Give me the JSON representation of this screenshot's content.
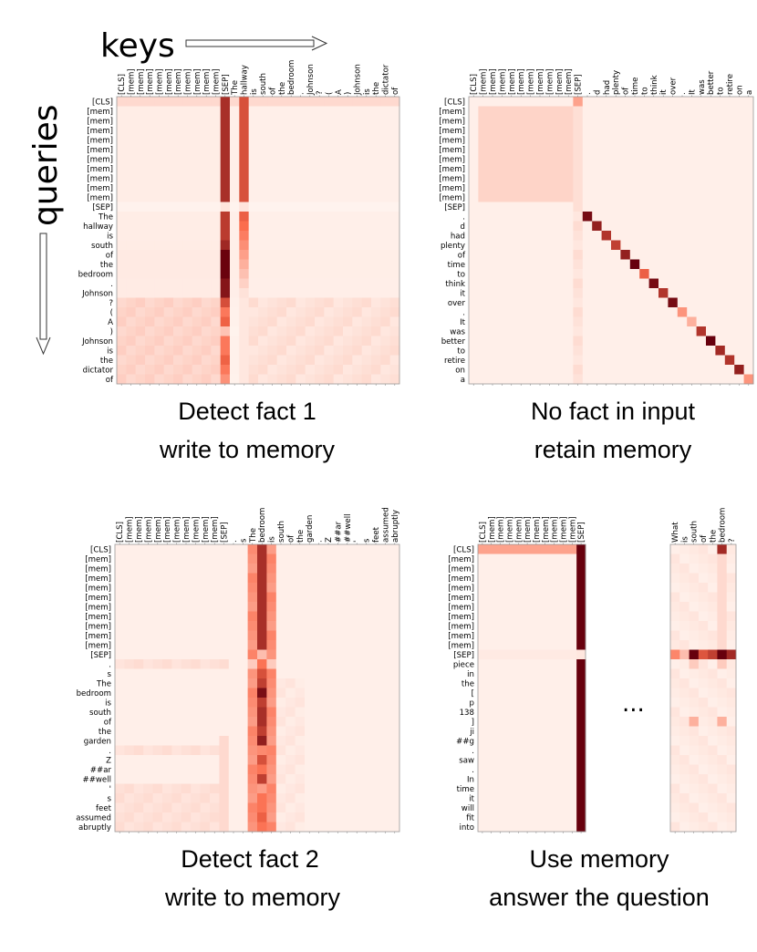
{
  "axis_labels": {
    "keys": "keys",
    "queries": "queries"
  },
  "ellipsis": "...",
  "colors": {
    "low": "#fff5f0",
    "mid": "#fb6a4a",
    "high": "#67000d"
  },
  "chart_data": [
    {
      "type": "heatmap",
      "caption": [
        "Detect fact 1",
        "write to memory"
      ],
      "x_labels": [
        "[CLS]",
        "[mem]",
        "[mem]",
        "[mem]",
        "[mem]",
        "[mem]",
        "[mem]",
        "[mem]",
        "[mem]",
        "[mem]",
        "[mem]",
        "[SEP]",
        "The",
        "hallway",
        "is",
        "south",
        "of",
        "the",
        "bedroom",
        ".",
        "Johnson",
        "?",
        "(",
        "A",
        ")",
        "Johnson",
        "is",
        "the",
        "dictator",
        "of"
      ],
      "y_labels": [
        "[CLS]",
        "[mem]",
        "[mem]",
        "[mem]",
        "[mem]",
        "[mem]",
        "[mem]",
        "[mem]",
        "[mem]",
        "[mem]",
        "[mem]",
        "[SEP]",
        "The",
        "hallway",
        "is",
        "south",
        "of",
        "the",
        "bedroom",
        ".",
        "Johnson",
        "?",
        "(",
        "A",
        ")",
        "Johnson",
        "is",
        "the",
        "dictator",
        "of"
      ],
      "column_weights": [
        0.03,
        0.03,
        0.03,
        0.03,
        0.03,
        0.03,
        0.03,
        0.03,
        0.03,
        0.03,
        0.03,
        0.75,
        0.02,
        0.6,
        0.02,
        0.02,
        0.02,
        0.02,
        0.02,
        0.02,
        0.02,
        0.02,
        0.02,
        0.02,
        0.02,
        0.02,
        0.02,
        0.02,
        0.02,
        0.02
      ],
      "row_weights": [
        0.6,
        1,
        1,
        1,
        1,
        1,
        1,
        1,
        1,
        1,
        1,
        0.3,
        1,
        1,
        1,
        1.1,
        1.3,
        1.3,
        1.3,
        1.2,
        1.2,
        0.9,
        0.7,
        0.8,
        0.4,
        0.7,
        0.7,
        0.8,
        0.7,
        0.6
      ]
    },
    {
      "type": "heatmap",
      "caption": [
        "No fact in input",
        "retain memory"
      ],
      "x_labels": [
        "[CLS]",
        "[mem]",
        "[mem]",
        "[mem]",
        "[mem]",
        "[mem]",
        "[mem]",
        "[mem]",
        "[mem]",
        "[mem]",
        "[mem]",
        "[SEP]",
        ".",
        "d",
        "had",
        "plenty",
        "of",
        "time",
        "to",
        "think",
        "it",
        "over",
        ".",
        "It",
        "was",
        "better",
        "to",
        "retire",
        "on",
        "a"
      ],
      "y_labels": [
        "[CLS]",
        "[mem]",
        "[mem]",
        "[mem]",
        "[mem]",
        "[mem]",
        "[mem]",
        "[mem]",
        "[mem]",
        "[mem]",
        "[mem]",
        "[SEP]",
        ".",
        "d",
        "had",
        "plenty",
        "of",
        "time",
        "to",
        "think",
        "it",
        "over",
        ".",
        "It",
        "was",
        "better",
        "to",
        "retire",
        "on",
        "a"
      ],
      "memory_block": 0.12,
      "diagonal": [
        0.95,
        0.85,
        0.75,
        0.7,
        0.85,
        1.0,
        0.55,
        0.95,
        0.75,
        0.95,
        0.35,
        0.25,
        0.75,
        1.0,
        0.8,
        0.75,
        0.85,
        0.35
      ]
    },
    {
      "type": "heatmap",
      "caption": [
        "Detect fact 2",
        "write to memory"
      ],
      "x_labels": [
        "[CLS]",
        "[mem]",
        "[mem]",
        "[mem]",
        "[mem]",
        "[mem]",
        "[mem]",
        "[mem]",
        "[mem]",
        "[mem]",
        "[mem]",
        "[SEP]",
        ".",
        "s",
        "The",
        "bedroom",
        "is",
        "south",
        "of",
        "the",
        "garden",
        ".",
        "Z",
        "##ar",
        "##well",
        "'",
        "s",
        "feet",
        "assumed",
        "abruptly"
      ],
      "y_labels": [
        "[CLS]",
        "[mem]",
        "[mem]",
        "[mem]",
        "[mem]",
        "[mem]",
        "[mem]",
        "[mem]",
        "[mem]",
        "[mem]",
        "[mem]",
        "[SEP]",
        ".",
        "s",
        "The",
        "bedroom",
        "is",
        "south",
        "of",
        "the",
        "garden",
        ".",
        "Z",
        "##ar",
        "##well",
        "'",
        "s",
        "feet",
        "assumed",
        "abruptly"
      ],
      "column_weights": [
        0.03,
        0.03,
        0.03,
        0.03,
        0.03,
        0.03,
        0.03,
        0.03,
        0.03,
        0.03,
        0.03,
        0.06,
        0.02,
        0.03,
        0.35,
        0.85,
        0.35,
        0.03,
        0.02,
        0.02,
        0.02,
        0.02,
        0.02,
        0.02,
        0.02,
        0.02,
        0.02,
        0.02,
        0.02,
        0.02
      ],
      "row_weights": [
        1,
        1,
        1,
        1,
        1,
        1,
        1,
        1,
        1,
        1,
        1,
        0.5,
        0.6,
        0.8,
        0.9,
        1.2,
        0.9,
        1,
        1,
        0.9,
        1.1,
        0.5,
        0.8,
        0.6,
        0.9,
        0.4,
        0.6,
        0.6,
        0.7,
        0.6
      ]
    },
    {
      "type": "heatmap",
      "caption": [
        "Use memory",
        "answer the question"
      ],
      "x_labels": [
        "[CLS]",
        "[mem]",
        "[mem]",
        "[mem]",
        "[mem]",
        "[mem]",
        "[mem]",
        "[mem]",
        "[mem]",
        "[mem]",
        "[mem]",
        "[SEP]"
      ],
      "y_labels": [
        "[CLS]",
        "[mem]",
        "[mem]",
        "[mem]",
        "[mem]",
        "[mem]",
        "[mem]",
        "[mem]",
        "[mem]",
        "[mem]",
        "[mem]",
        "[SEP]",
        "piece",
        "in",
        "the",
        "[",
        "p",
        "138",
        "]",
        "ji",
        "##g",
        ".",
        "saw",
        ".",
        "In",
        "time",
        "it",
        "will",
        "fit",
        "into"
      ],
      "x_labels_right": [
        "What",
        "is",
        "south",
        "of",
        "the",
        "bedroom",
        "?"
      ],
      "sep_column_weight": 1.0,
      "cls_row_weight": 0.3,
      "sep_row_right": [
        0.4,
        0.2,
        1.0,
        0.6,
        0.7,
        1.0,
        0.8
      ]
    }
  ]
}
